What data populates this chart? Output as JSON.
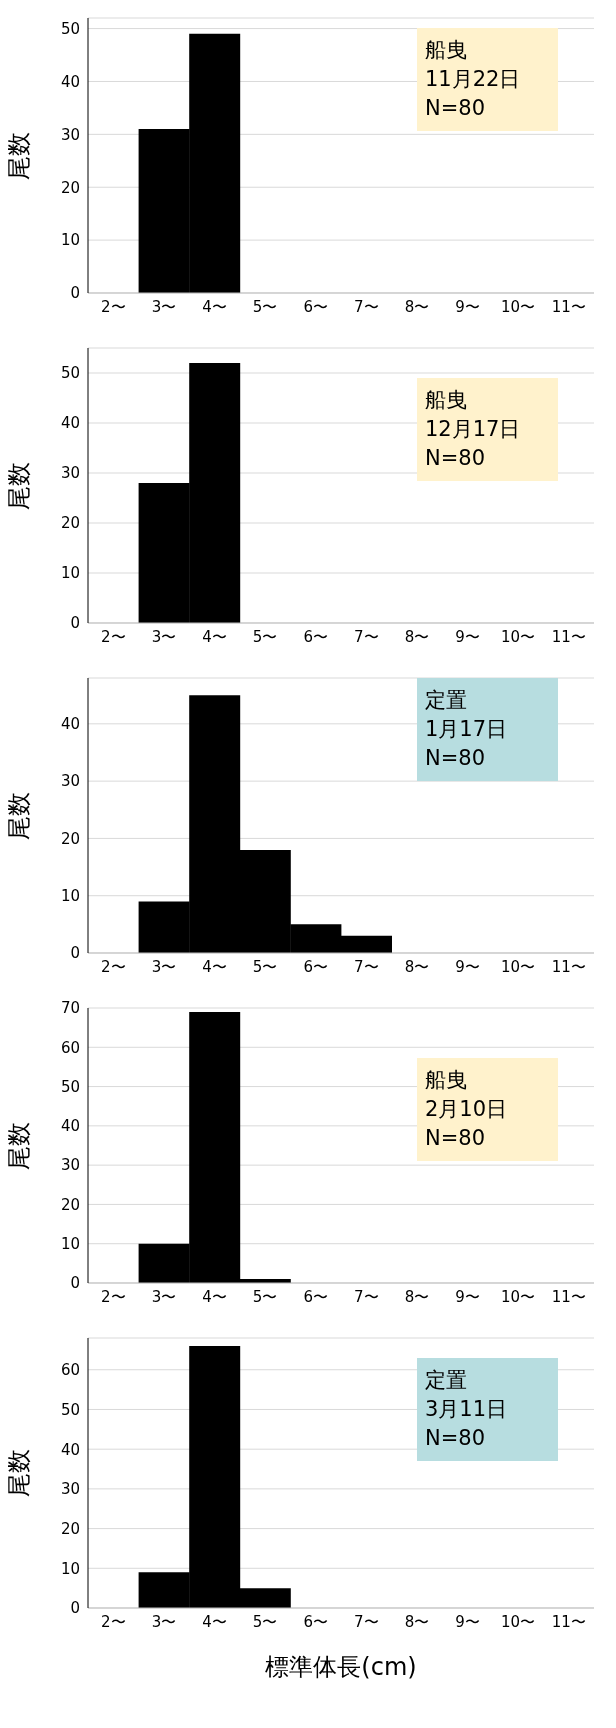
{
  "chart_data": [
    {
      "type": "bar",
      "ylabel": "尾数",
      "categories": [
        "2〜",
        "3〜",
        "4〜",
        "5〜",
        "6〜",
        "7〜",
        "8〜",
        "9〜",
        "10〜",
        "11〜"
      ],
      "values": [
        0,
        31,
        49,
        0,
        0,
        0,
        0,
        0,
        0,
        0
      ],
      "color": "#000000",
      "ylim": [
        0,
        52
      ],
      "yticks": [
        0,
        10,
        20,
        30,
        40,
        50
      ],
      "grid": "y",
      "annotations": [
        "船曳\n11月22日\nN=80"
      ]
    },
    {
      "type": "bar",
      "ylabel": "尾数",
      "categories": [
        "2〜",
        "3〜",
        "4〜",
        "5〜",
        "6〜",
        "7〜",
        "8〜",
        "9〜",
        "10〜",
        "11〜"
      ],
      "values": [
        0,
        28,
        52,
        0,
        0,
        0,
        0,
        0,
        0,
        0
      ],
      "color": "#000000",
      "ylim": [
        0,
        55
      ],
      "yticks": [
        0,
        10,
        20,
        30,
        40,
        50
      ],
      "grid": "y",
      "annotations": [
        "船曳\n12月17日\nN=80"
      ]
    },
    {
      "type": "bar",
      "ylabel": "尾数",
      "categories": [
        "2〜",
        "3〜",
        "4〜",
        "5〜",
        "6〜",
        "7〜",
        "8〜",
        "9〜",
        "10〜",
        "11〜"
      ],
      "values": [
        0,
        9,
        45,
        18,
        5,
        3,
        0,
        0,
        0,
        0
      ],
      "color": "#000000",
      "ylim": [
        0,
        48
      ],
      "yticks": [
        0,
        10,
        20,
        30,
        40
      ],
      "grid": "y",
      "annotations": [
        "定置\n1月17日\nN=80"
      ]
    },
    {
      "type": "bar",
      "ylabel": "尾数",
      "categories": [
        "2〜",
        "3〜",
        "4〜",
        "5〜",
        "6〜",
        "7〜",
        "8〜",
        "9〜",
        "10〜",
        "11〜"
      ],
      "values": [
        0,
        10,
        69,
        1,
        0,
        0,
        0,
        0,
        0,
        0
      ],
      "color": "#000000",
      "ylim": [
        0,
        70
      ],
      "yticks": [
        0,
        10,
        20,
        30,
        40,
        50,
        60,
        70
      ],
      "grid": "y",
      "annotations": [
        "船曳\n2月10日\nN=80"
      ]
    },
    {
      "type": "bar",
      "ylabel": "尾数",
      "xlabel": "標準体長(cm)",
      "categories": [
        "2〜",
        "3〜",
        "4〜",
        "5〜",
        "6〜",
        "7〜",
        "8〜",
        "9〜",
        "10〜",
        "11〜"
      ],
      "values": [
        0,
        9,
        66,
        5,
        0,
        0,
        0,
        0,
        0,
        0
      ],
      "color": "#000000",
      "ylim": [
        0,
        68
      ],
      "yticks": [
        0,
        10,
        20,
        30,
        40,
        50,
        60
      ],
      "grid": "y",
      "annotations": [
        "定置\n3月11日\nN=80"
      ]
    }
  ]
}
